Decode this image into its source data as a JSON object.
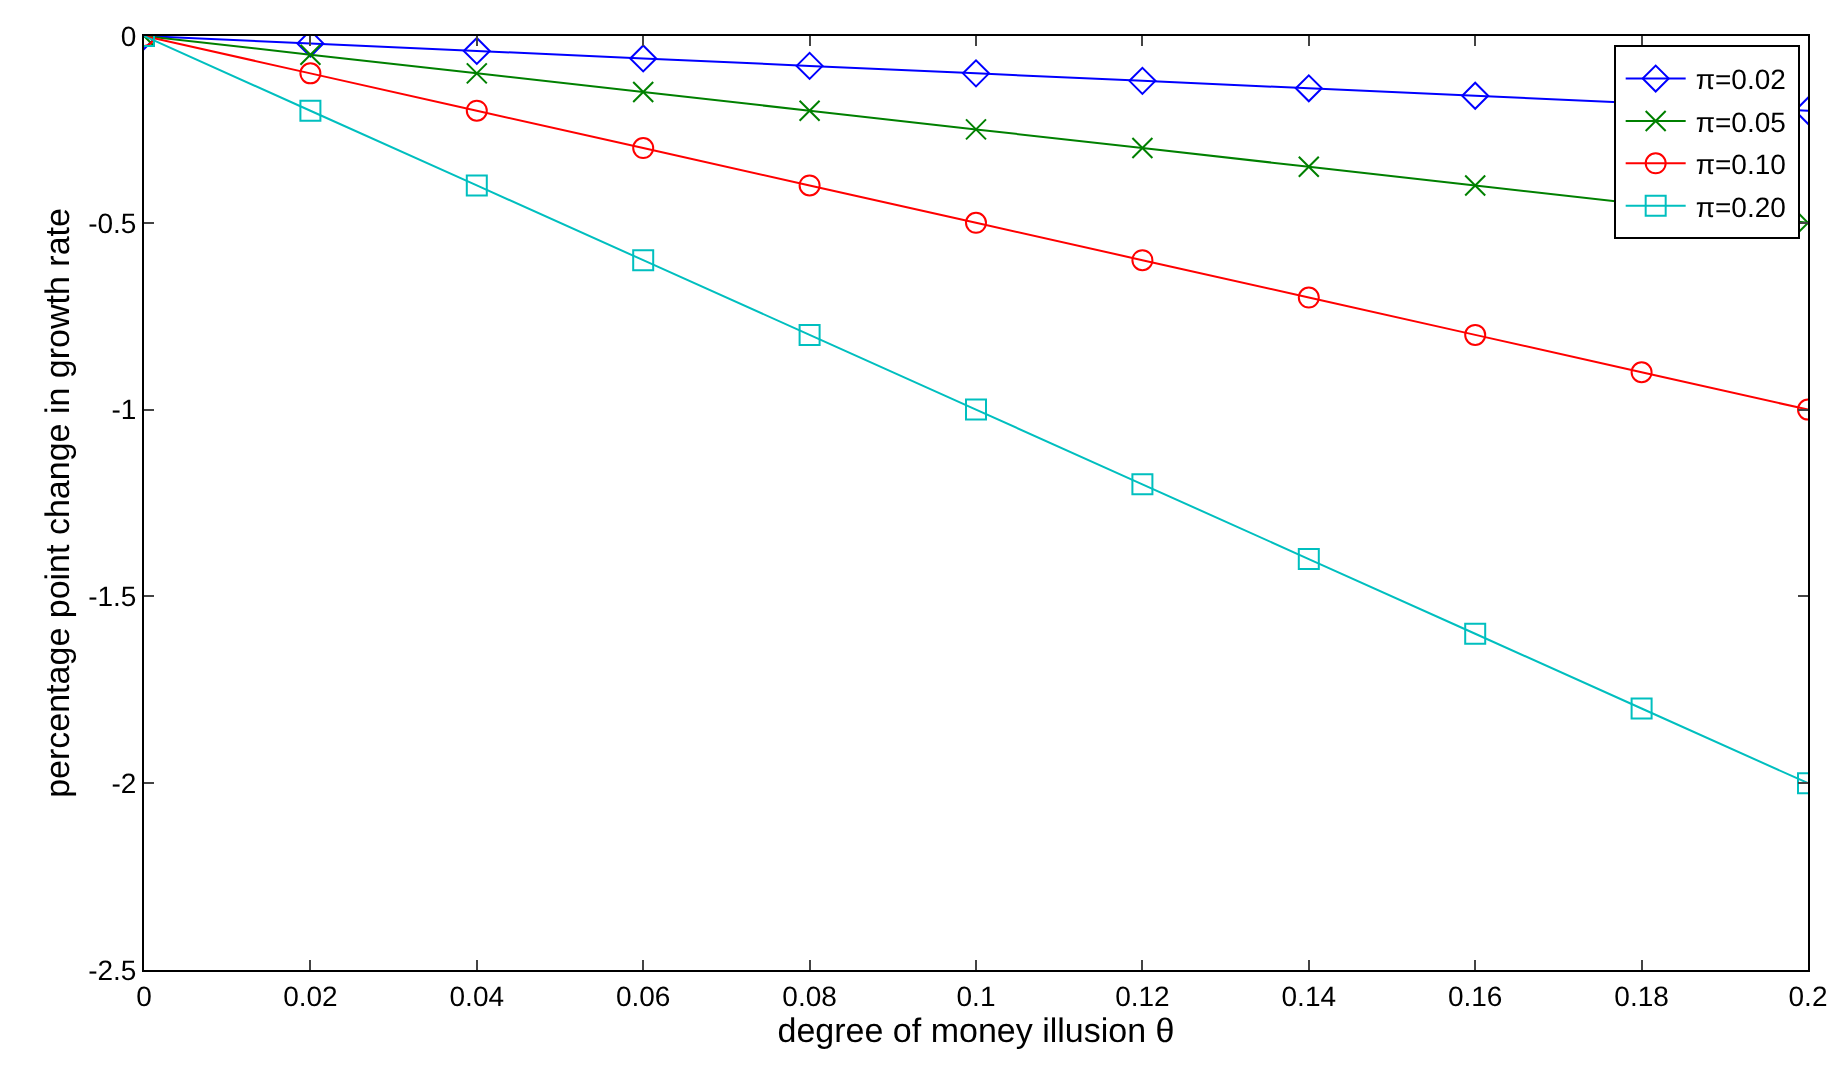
{
  "chart_data": {
    "type": "line",
    "xlabel": "degree of money illusion θ",
    "ylabel": "percentage point change in growth rate",
    "x": [
      0,
      0.02,
      0.04,
      0.06,
      0.08,
      0.1,
      0.12,
      0.14,
      0.16,
      0.18,
      0.2
    ],
    "xlim": [
      0,
      0.2
    ],
    "xticks": [
      0,
      0.02,
      0.04,
      0.06,
      0.08,
      0.1,
      0.12,
      0.14,
      0.16,
      0.18,
      0.2
    ],
    "ylim": [
      -2.5,
      0
    ],
    "yticks": [
      0,
      -0.5,
      -1,
      -1.5,
      -2,
      -2.5
    ],
    "grid": false,
    "legend": "top right",
    "line_style": "solid",
    "series": [
      {
        "name": "π=0.02",
        "color": "#0000ff",
        "marker": "diamond",
        "values": [
          0,
          -0.02,
          -0.04,
          -0.06,
          -0.08,
          -0.1,
          -0.12,
          -0.14,
          -0.16,
          null,
          -0.2
        ]
      },
      {
        "name": "π=0.05",
        "color": "#008000",
        "marker": "cross",
        "values": [
          0,
          -0.05,
          -0.1,
          -0.15,
          -0.2,
          -0.25,
          -0.3,
          -0.35,
          -0.4,
          null,
          -0.5
        ]
      },
      {
        "name": "π=0.10",
        "color": "#ff0000",
        "marker": "circle",
        "values": [
          0,
          -0.1,
          -0.2,
          -0.3,
          -0.4,
          -0.5,
          -0.6,
          -0.7,
          -0.8,
          -0.9,
          -1
        ]
      },
      {
        "name": "π=0.20",
        "color": "#00bfbf",
        "marker": "square",
        "values": [
          0,
          -0.2,
          -0.4,
          -0.6,
          -0.8,
          -1,
          -1.2,
          -1.4,
          -1.6,
          -1.8,
          -2
        ]
      }
    ]
  }
}
